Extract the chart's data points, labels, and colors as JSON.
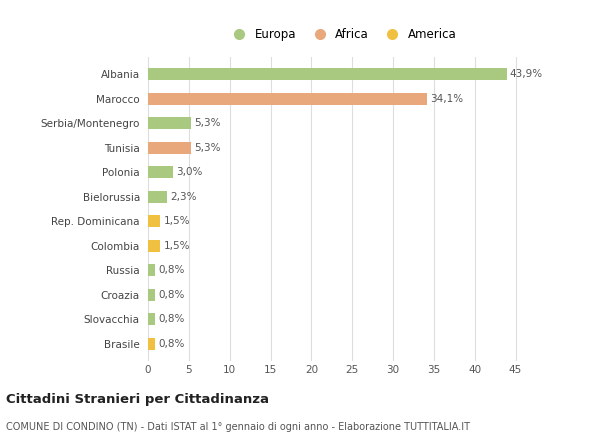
{
  "categories": [
    "Albania",
    "Marocco",
    "Serbia/Montenegro",
    "Tunisia",
    "Polonia",
    "Bielorussia",
    "Rep. Dominicana",
    "Colombia",
    "Russia",
    "Croazia",
    "Slovacchia",
    "Brasile"
  ],
  "values": [
    43.9,
    34.1,
    5.3,
    5.3,
    3.0,
    2.3,
    1.5,
    1.5,
    0.8,
    0.8,
    0.8,
    0.8
  ],
  "labels": [
    "43,9%",
    "34,1%",
    "5,3%",
    "5,3%",
    "3,0%",
    "2,3%",
    "1,5%",
    "1,5%",
    "0,8%",
    "0,8%",
    "0,8%",
    "0,8%"
  ],
  "colors": [
    "#a8c97f",
    "#e8a87c",
    "#a8c97f",
    "#e8a87c",
    "#a8c97f",
    "#a8c97f",
    "#f0c040",
    "#f0c040",
    "#a8c97f",
    "#a8c97f",
    "#a8c97f",
    "#f0c040"
  ],
  "legend_labels": [
    "Europa",
    "Africa",
    "America"
  ],
  "legend_colors": [
    "#a8c97f",
    "#e8a87c",
    "#f0c040"
  ],
  "title": "Cittadini Stranieri per Cittadinanza",
  "subtitle": "COMUNE DI CONDINO (TN) - Dati ISTAT al 1° gennaio di ogni anno - Elaborazione TUTTITALIA.IT",
  "xlabel_ticks": [
    0,
    5,
    10,
    15,
    20,
    25,
    30,
    35,
    40,
    45
  ],
  "xlim": [
    -0.5,
    48
  ],
  "background_color": "#ffffff",
  "grid_color": "#dddddd",
  "bar_height": 0.5
}
